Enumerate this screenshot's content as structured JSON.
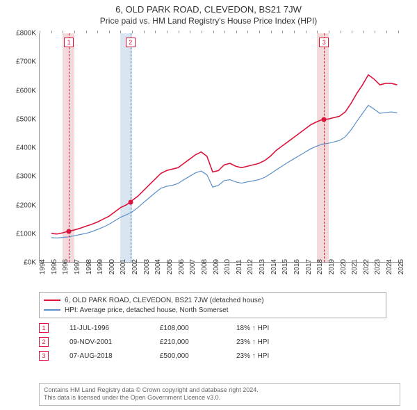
{
  "title": {
    "main": "6, OLD PARK ROAD, CLEVEDON, BS21 7JW",
    "sub": "Price paid vs. HM Land Registry's House Price Index (HPI)"
  },
  "chart": {
    "type": "line",
    "background_color": "#ffffff",
    "ylim": [
      0,
      800000
    ],
    "ytick_step": 100000,
    "yticks": [
      "£0K",
      "£100K",
      "£200K",
      "£300K",
      "£400K",
      "£500K",
      "£600K",
      "£700K",
      "£800K"
    ],
    "x_years": [
      1994,
      1995,
      1996,
      1997,
      1998,
      1999,
      2000,
      2001,
      2002,
      2003,
      2004,
      2005,
      2006,
      2007,
      2008,
      2009,
      2010,
      2011,
      2012,
      2013,
      2014,
      2015,
      2016,
      2017,
      2018,
      2019,
      2020,
      2021,
      2022,
      2023,
      2024,
      2025
    ],
    "x_range": [
      1994.0,
      2025.5
    ],
    "bands": [
      {
        "start": 1996.0,
        "end": 1997.0,
        "color": "#f3dada"
      },
      {
        "start": 2001.0,
        "end": 2002.0,
        "color": "#d9e6f2"
      },
      {
        "start": 2018.0,
        "end": 2019.0,
        "color": "#f3dada"
      }
    ],
    "markers": [
      {
        "n": "1",
        "year": 1996.53,
        "price": 108000,
        "dash_color": "#dc143c"
      },
      {
        "n": "2",
        "year": 2001.86,
        "price": 210000,
        "dash_color": "#4a7fb0"
      },
      {
        "n": "3",
        "year": 2018.6,
        "price": 500000,
        "dash_color": "#dc143c"
      }
    ],
    "sale_dot_color": "#dc143c",
    "series": [
      {
        "key": "price_paid",
        "label": "6, OLD PARK ROAD, CLEVEDON, BS21 7JW (detached house)",
        "color": "#dc143c",
        "line_width": 1.6,
        "points": [
          [
            1995.0,
            100000
          ],
          [
            1995.5,
            98000
          ],
          [
            1996.0,
            102000
          ],
          [
            1996.53,
            108000
          ],
          [
            1997.0,
            112000
          ],
          [
            1997.5,
            118000
          ],
          [
            1998.0,
            125000
          ],
          [
            1998.5,
            132000
          ],
          [
            1999.0,
            140000
          ],
          [
            1999.5,
            150000
          ],
          [
            2000.0,
            160000
          ],
          [
            2000.5,
            175000
          ],
          [
            2001.0,
            190000
          ],
          [
            2001.5,
            200000
          ],
          [
            2001.86,
            210000
          ],
          [
            2002.0,
            215000
          ],
          [
            2002.5,
            230000
          ],
          [
            2003.0,
            250000
          ],
          [
            2003.5,
            270000
          ],
          [
            2004.0,
            290000
          ],
          [
            2004.5,
            310000
          ],
          [
            2005.0,
            320000
          ],
          [
            2005.5,
            325000
          ],
          [
            2006.0,
            330000
          ],
          [
            2006.5,
            345000
          ],
          [
            2007.0,
            360000
          ],
          [
            2007.5,
            375000
          ],
          [
            2008.0,
            385000
          ],
          [
            2008.5,
            370000
          ],
          [
            2009.0,
            315000
          ],
          [
            2009.5,
            320000
          ],
          [
            2010.0,
            340000
          ],
          [
            2010.5,
            345000
          ],
          [
            2011.0,
            335000
          ],
          [
            2011.5,
            330000
          ],
          [
            2012.0,
            335000
          ],
          [
            2012.5,
            340000
          ],
          [
            2013.0,
            345000
          ],
          [
            2013.5,
            355000
          ],
          [
            2014.0,
            370000
          ],
          [
            2014.5,
            390000
          ],
          [
            2015.0,
            405000
          ],
          [
            2015.5,
            420000
          ],
          [
            2016.0,
            435000
          ],
          [
            2016.5,
            450000
          ],
          [
            2017.0,
            465000
          ],
          [
            2017.5,
            480000
          ],
          [
            2018.0,
            490000
          ],
          [
            2018.6,
            500000
          ],
          [
            2019.0,
            500000
          ],
          [
            2019.5,
            505000
          ],
          [
            2020.0,
            510000
          ],
          [
            2020.5,
            525000
          ],
          [
            2021.0,
            555000
          ],
          [
            2021.5,
            590000
          ],
          [
            2022.0,
            620000
          ],
          [
            2022.5,
            655000
          ],
          [
            2023.0,
            640000
          ],
          [
            2023.5,
            620000
          ],
          [
            2024.0,
            625000
          ],
          [
            2024.5,
            625000
          ],
          [
            2025.0,
            620000
          ]
        ]
      },
      {
        "key": "hpi",
        "label": "HPI: Average price, detached house, North Somerset",
        "color": "#5b8fc7",
        "line_width": 1.2,
        "points": [
          [
            1995.0,
            85000
          ],
          [
            1995.5,
            84000
          ],
          [
            1996.0,
            86000
          ],
          [
            1996.5,
            88000
          ],
          [
            1997.0,
            92000
          ],
          [
            1997.5,
            96000
          ],
          [
            1998.0,
            100000
          ],
          [
            1998.5,
            106000
          ],
          [
            1999.0,
            114000
          ],
          [
            1999.5,
            122000
          ],
          [
            2000.0,
            132000
          ],
          [
            2000.5,
            144000
          ],
          [
            2001.0,
            156000
          ],
          [
            2001.5,
            165000
          ],
          [
            2002.0,
            175000
          ],
          [
            2002.5,
            190000
          ],
          [
            2003.0,
            208000
          ],
          [
            2003.5,
            225000
          ],
          [
            2004.0,
            242000
          ],
          [
            2004.5,
            258000
          ],
          [
            2005.0,
            265000
          ],
          [
            2005.5,
            268000
          ],
          [
            2006.0,
            275000
          ],
          [
            2006.5,
            288000
          ],
          [
            2007.0,
            300000
          ],
          [
            2007.5,
            312000
          ],
          [
            2008.0,
            318000
          ],
          [
            2008.5,
            305000
          ],
          [
            2009.0,
            262000
          ],
          [
            2009.5,
            268000
          ],
          [
            2010.0,
            285000
          ],
          [
            2010.5,
            288000
          ],
          [
            2011.0,
            280000
          ],
          [
            2011.5,
            276000
          ],
          [
            2012.0,
            280000
          ],
          [
            2012.5,
            284000
          ],
          [
            2013.0,
            288000
          ],
          [
            2013.5,
            296000
          ],
          [
            2014.0,
            308000
          ],
          [
            2014.5,
            322000
          ],
          [
            2015.0,
            335000
          ],
          [
            2015.5,
            348000
          ],
          [
            2016.0,
            360000
          ],
          [
            2016.5,
            372000
          ],
          [
            2017.0,
            384000
          ],
          [
            2017.5,
            396000
          ],
          [
            2018.0,
            405000
          ],
          [
            2018.5,
            412000
          ],
          [
            2019.0,
            415000
          ],
          [
            2019.5,
            420000
          ],
          [
            2020.0,
            425000
          ],
          [
            2020.5,
            438000
          ],
          [
            2021.0,
            462000
          ],
          [
            2021.5,
            492000
          ],
          [
            2022.0,
            520000
          ],
          [
            2022.5,
            548000
          ],
          [
            2023.0,
            535000
          ],
          [
            2023.5,
            520000
          ],
          [
            2024.0,
            523000
          ],
          [
            2024.5,
            525000
          ],
          [
            2025.0,
            522000
          ]
        ]
      }
    ]
  },
  "legend": {
    "border_color": "#aaaaaa"
  },
  "sales": [
    {
      "n": "1",
      "date": "11-JUL-1996",
      "price": "£108,000",
      "hpi": "18% ↑ HPI"
    },
    {
      "n": "2",
      "date": "09-NOV-2001",
      "price": "£210,000",
      "hpi": "23% ↑ HPI"
    },
    {
      "n": "3",
      "date": "07-AUG-2018",
      "price": "£500,000",
      "hpi": "23% ↑ HPI"
    }
  ],
  "footer": {
    "line1": "Contains HM Land Registry data © Crown copyright and database right 2024.",
    "line2": "This data is licensed under the Open Government Licence v3.0."
  }
}
